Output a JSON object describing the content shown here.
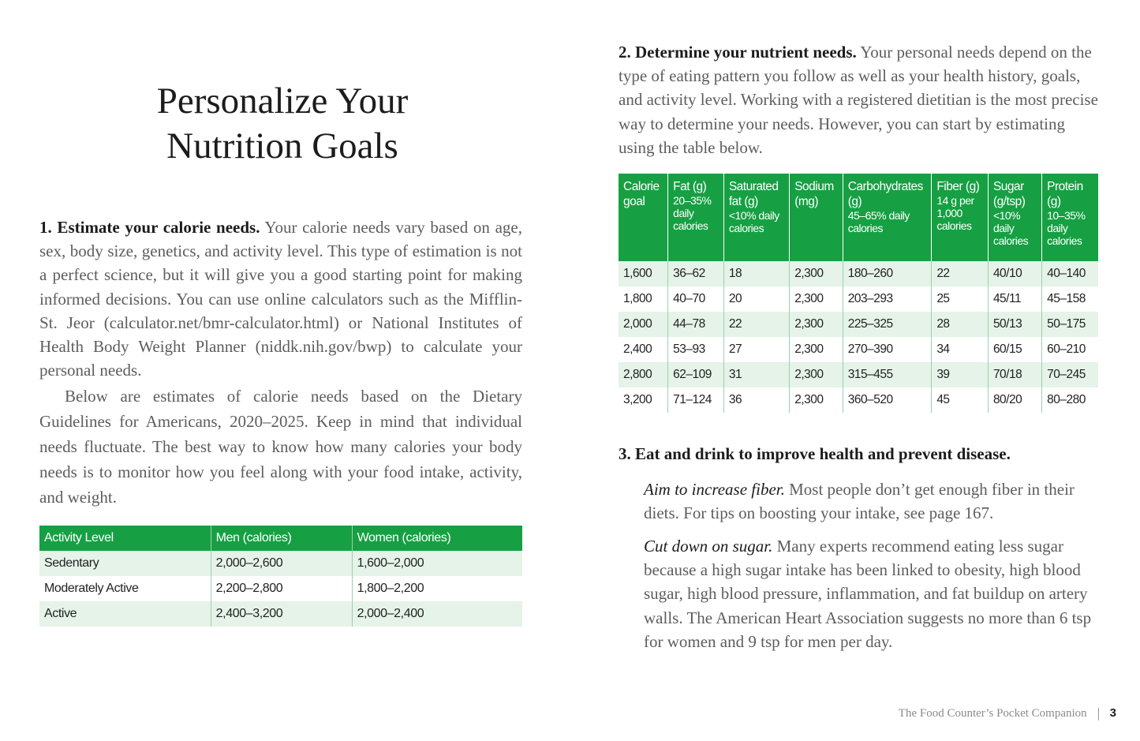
{
  "title": {
    "lines": [
      "Personalize Your",
      "Nutrition Goals"
    ]
  },
  "section1": {
    "heading": "1. Estimate your calorie needs.",
    "text": "Your calorie needs vary based on age, sex, body size, genetics, and activity level. This type of estimation is not a perfect science, but it will give you a good starting point for making informed decisions. You can use online calculators such as the Mifflin-St. Jeor (calculator.net/bmr-calculator.html) or National Institutes of Health Body Weight Planner (niddk.nih.gov/bwp) to calculate your personal needs.",
    "paragraph2": "Below are estimates of calorie needs based on the Dietary Guidelines for Americans, 2020–2025. Keep in mind that individual needs fluctuate. The best way to know how many calories your body needs is to monitor how you feel along with your food intake, activity, and weight.",
    "table": {
      "headers": [
        "Activity Level",
        "Men (calories)",
        "Women (calories)"
      ],
      "rows": [
        [
          "Sedentary",
          "2,000–2,600",
          "1,600–2,000"
        ],
        [
          "Moderately Active",
          "2,200–2,800",
          "1,800–2,200"
        ],
        [
          "Active",
          "2,400–3,200",
          "2,000–2,400"
        ]
      ]
    }
  },
  "section2": {
    "heading": "2. Determine your nutrient needs.",
    "text": "Your personal needs depend on the type of eating pattern you follow as well as your health history, goals, and activity level. Working with a registered dietitian is the most precise way to determine your needs. However, you can start by estimating using the table below.",
    "table": {
      "headers": [
        {
          "name": "Calorie goal"
        },
        {
          "name": "Fat (g)",
          "note": "20–35% daily calories"
        },
        {
          "name": "Saturated fat (g)",
          "note": "<10% daily calories"
        },
        {
          "name": "Sodium (mg)"
        },
        {
          "name": "Carbohydrates (g)",
          "note": "45–65% daily calories"
        },
        {
          "name": "Fiber (g)",
          "note": "14 g per 1,000 calories"
        },
        {
          "name": "Sugar (g/tsp)",
          "note": "<10% daily calories"
        },
        {
          "name": "Protein (g)",
          "note": "10–35% daily calories"
        }
      ],
      "rows": [
        [
          "1,600",
          "36–62",
          "18",
          "2,300",
          "180–260",
          "22",
          "40/10",
          "40–140"
        ],
        [
          "1,800",
          "40–70",
          "20",
          "2,300",
          "203–293",
          "25",
          "45/11",
          "45–158"
        ],
        [
          "2,000",
          "44–78",
          "22",
          "2,300",
          "225–325",
          "28",
          "50/13",
          "50–175"
        ],
        [
          "2,400",
          "53–93",
          "27",
          "2,300",
          "270–390",
          "34",
          "60/15",
          "60–210"
        ],
        [
          "2,800",
          "62–109",
          "31",
          "2,300",
          "315–455",
          "39",
          "70/18",
          "70–245"
        ],
        [
          "3,200",
          "71–124",
          "36",
          "2,300",
          "360–520",
          "45",
          "80/20",
          "80–280"
        ]
      ]
    }
  },
  "section3": {
    "heading": "3. Eat and drink to improve health and prevent disease.",
    "items": [
      {
        "lead": "Aim to increase fiber.",
        "text": "Most people don’t get enough fiber in their diets. For tips on boosting your intake, see page 167."
      },
      {
        "lead": "Cut down on sugar.",
        "text": "Many experts recommend eating less sugar because a high sugar intake has been linked to obesity, high blood sugar, high blood pressure, inflammation, and fat buildup on artery walls. The American Heart Association suggests no more than 6 tsp for women and 9 tsp for men per day."
      }
    ]
  },
  "footer": {
    "book": "The Food Counter’s Pocket Companion",
    "page": "3"
  }
}
